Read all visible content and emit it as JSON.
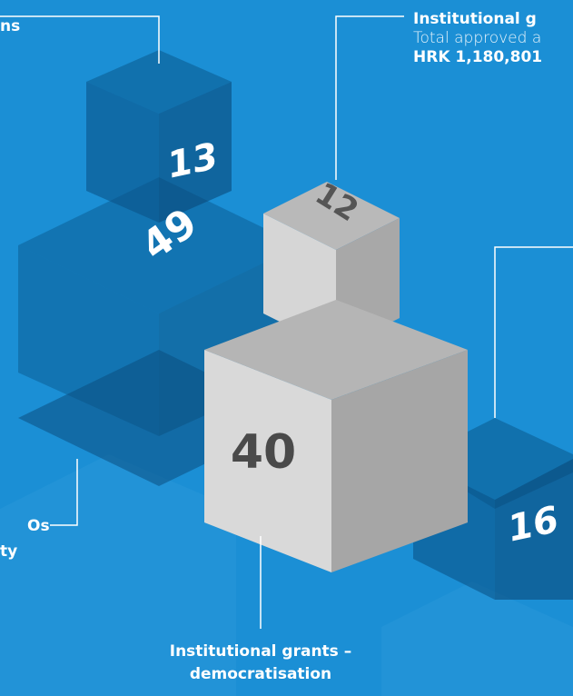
{
  "cubes": [
    {
      "number": "13"
    },
    {
      "number": "49"
    },
    {
      "number": "12"
    },
    {
      "number": "40"
    },
    {
      "number": "16"
    }
  ],
  "callouts": [
    {
      "lines": [
        "ns"
      ]
    },
    {
      "lines": [
        "Institutional g",
        "Total approved a",
        "HRK 1,180,801"
      ]
    },
    {
      "lines": [
        "Os",
        "ty"
      ]
    },
    {
      "lines": [
        "Institutional grants –",
        "democratisation"
      ]
    }
  ]
}
